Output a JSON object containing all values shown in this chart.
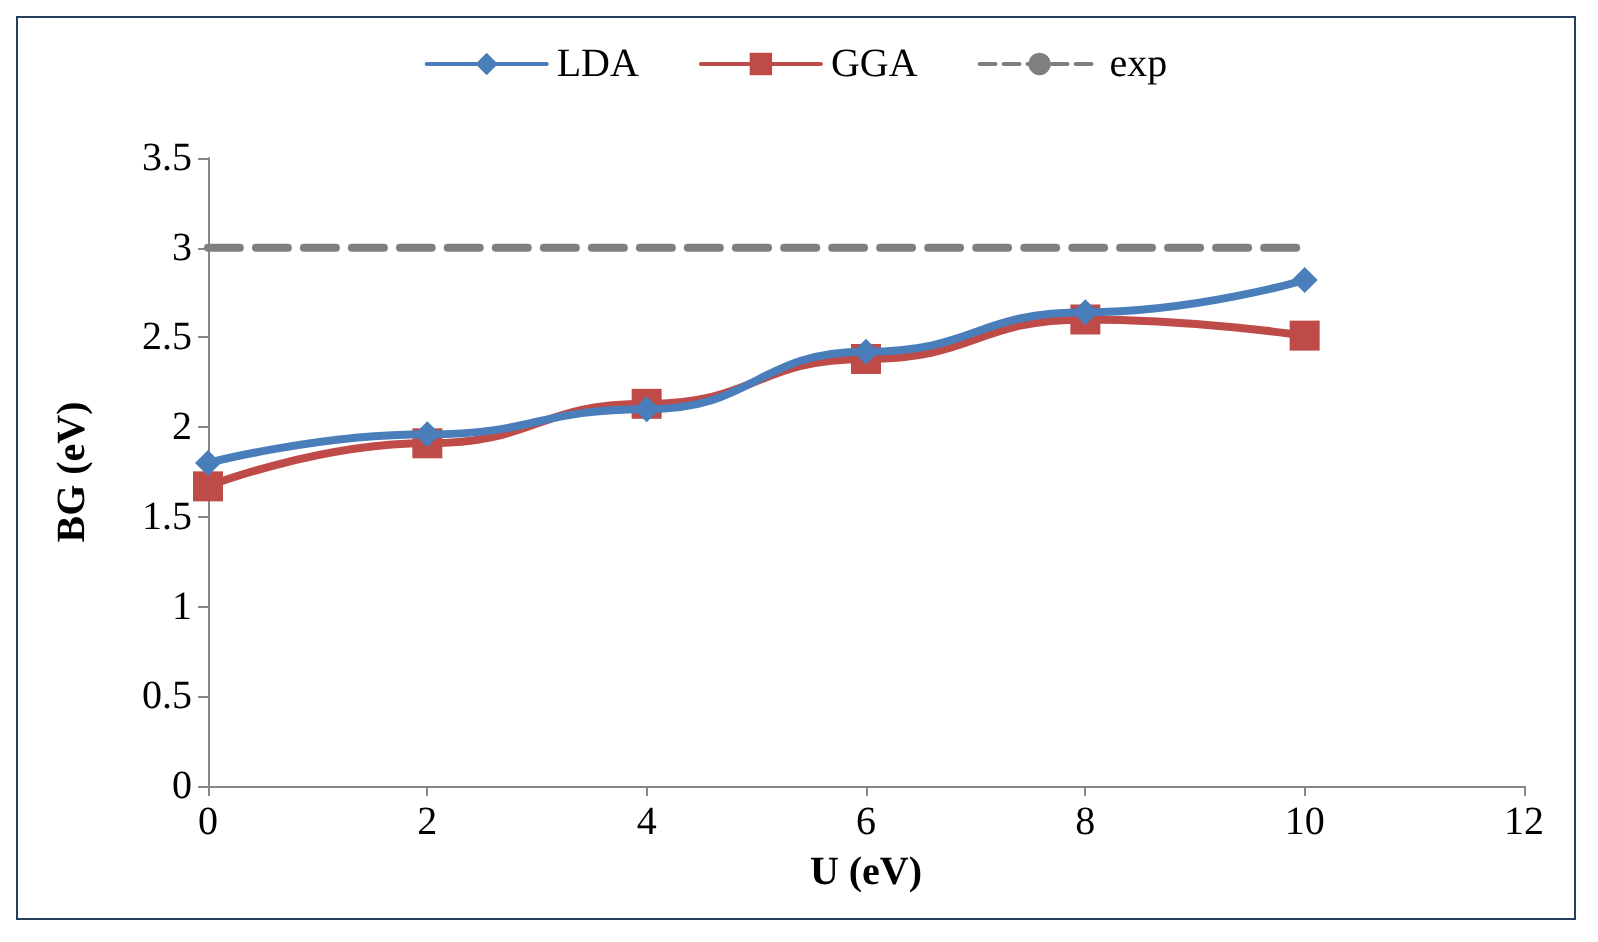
{
  "chart_data": {
    "type": "line",
    "xlabel": "U (eV)",
    "ylabel": "BG (eV)",
    "x": [
      0,
      2,
      4,
      6,
      8,
      10
    ],
    "series": [
      {
        "name": "LDA",
        "color": "#4a7ebb",
        "values": [
          1.8,
          1.96,
          2.1,
          2.42,
          2.64,
          2.82
        ],
        "marker": "diamond",
        "line_style": "solid"
      },
      {
        "name": "GGA",
        "color": "#be4b48",
        "values": [
          1.67,
          1.91,
          2.13,
          2.38,
          2.6,
          2.51
        ],
        "marker": "square",
        "line_style": "solid"
      },
      {
        "name": "exp",
        "color": "#7f7f7f",
        "x": [
          0,
          10
        ],
        "values": [
          3,
          3
        ],
        "marker": "none",
        "line_style": "dashed"
      }
    ],
    "xlim": [
      0,
      12
    ],
    "xticks": [
      0,
      2,
      4,
      6,
      8,
      10,
      12
    ],
    "ylim": [
      0,
      3.5
    ],
    "yticks": [
      0,
      0.5,
      1,
      1.5,
      2,
      2.5,
      3,
      3.5
    ],
    "grid": false,
    "legend": "top"
  }
}
